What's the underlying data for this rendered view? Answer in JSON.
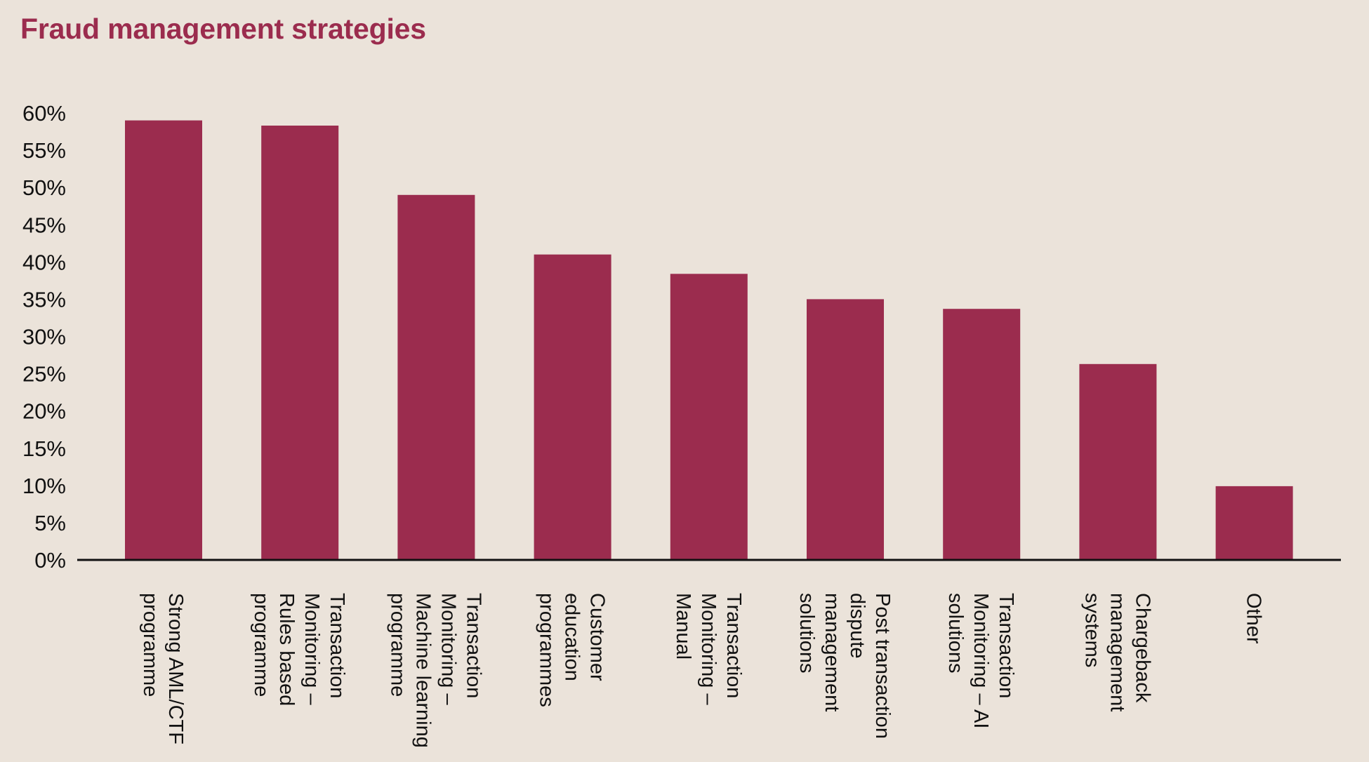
{
  "chart_data": {
    "type": "bar",
    "title": "Fraud management strategies",
    "xlabel": "",
    "ylabel": "",
    "ylim": [
      0,
      60
    ],
    "y_ticks": [
      "0%",
      "5%",
      "10%",
      "15%",
      "20%",
      "25%",
      "30%",
      "35%",
      "40%",
      "45%",
      "50%",
      "55%",
      "60%"
    ],
    "y_tick_values": [
      0,
      5,
      10,
      15,
      20,
      25,
      30,
      35,
      40,
      45,
      50,
      55,
      60
    ],
    "grid": false,
    "legend": "none",
    "bar_color": "#9b2c4e",
    "axis_color": "#111111",
    "categories": [
      [
        "Strong AML/CTF",
        "programme"
      ],
      [
        "Transaction",
        "Monitoring –",
        "Rules based",
        "programme"
      ],
      [
        "Transaction",
        "Monitoring –",
        "Machine learning",
        "programme"
      ],
      [
        "Customer",
        "education",
        "programmes"
      ],
      [
        "Transaction",
        "Monitoring –",
        "Manual"
      ],
      [
        "Post transaction",
        "dispute",
        "management",
        "solutions"
      ],
      [
        "Transaction",
        "Monitoring – AI",
        "solutions"
      ],
      [
        "Chargeback",
        "management",
        "systems"
      ],
      [
        "Other"
      ]
    ],
    "values": [
      59,
      58.3,
      49,
      41,
      38.4,
      35,
      33.7,
      26.3,
      9.9
    ]
  }
}
